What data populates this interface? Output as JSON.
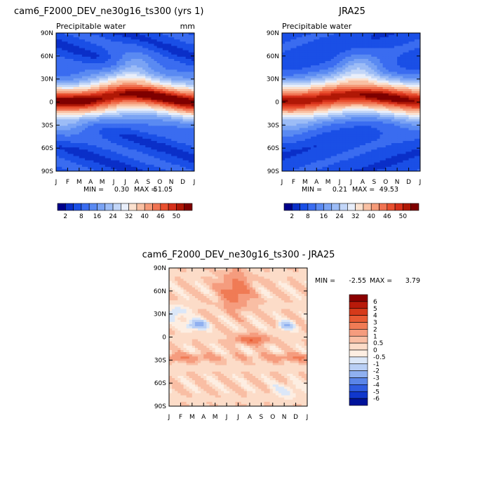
{
  "chart_data": [
    {
      "type": "heatmap",
      "title": "cam6_F2000_DEV_ne30g16_ts300 (yrs 1)",
      "subtitle": "Precipitable water",
      "units": "mm",
      "x_ticks": [
        "J",
        "F",
        "M",
        "A",
        "M",
        "J",
        "J",
        "A",
        "S",
        "O",
        "N",
        "D",
        "J"
      ],
      "y_ticks": [
        "90N",
        "60N",
        "30N",
        "0",
        "30S",
        "60S",
        "90S"
      ],
      "ylim": [
        -90,
        90
      ],
      "stats": {
        "min_label": "MIN =",
        "min": "0.30",
        "max_label": "MAX =",
        "max": "51.05"
      },
      "colorbar_labels": [
        "2",
        "8",
        "16",
        "24",
        "32",
        "40",
        "46",
        "50"
      ],
      "colorbar_colors": [
        "#00008a",
        "#0a2fc8",
        "#1a4fe6",
        "#3a6cf0",
        "#5a8af2",
        "#7aa3f4",
        "#9cbcf6",
        "#c2d6f8",
        "#e8eefa",
        "#fbe1cf",
        "#f9c0a3",
        "#f59a78",
        "#f07352",
        "#e9502f",
        "#d6301a",
        "#b01806",
        "#7f0000"
      ],
      "field_model": "A"
    },
    {
      "type": "heatmap",
      "title": "JRA25",
      "subtitle": "Precipitable water",
      "x_ticks": [
        "J",
        "F",
        "M",
        "A",
        "M",
        "J",
        "J",
        "A",
        "S",
        "O",
        "N",
        "D",
        "J"
      ],
      "y_ticks": [
        "90N",
        "60N",
        "30N",
        "0",
        "30S",
        "60S",
        "90S"
      ],
      "ylim": [
        -90,
        90
      ],
      "stats": {
        "min_label": "MIN =",
        "min": "0.21",
        "max_label": "MAX =",
        "max": "49.53"
      },
      "colorbar_labels": [
        "2",
        "8",
        "16",
        "24",
        "32",
        "40",
        "46",
        "50"
      ],
      "field_model": "B"
    },
    {
      "type": "heatmap",
      "title": "cam6_F2000_DEV_ne30g16_ts300 - JRA25",
      "x_ticks": [
        "J",
        "F",
        "M",
        "A",
        "M",
        "J",
        "J",
        "A",
        "S",
        "O",
        "N",
        "D",
        "J"
      ],
      "y_ticks": [
        "90N",
        "60N",
        "30N",
        "0",
        "30S",
        "60S",
        "90S"
      ],
      "ylim": [
        -90,
        90
      ],
      "stats": {
        "min_label": "MIN =",
        "min": "-2.55",
        "max_label": "MAX =",
        "max": "3.79"
      },
      "colorbar_labels": [
        "6",
        "5",
        "4",
        "3",
        "2",
        "1",
        "0.5",
        "0",
        "-0.5",
        "-1",
        "-2",
        "-3",
        "-4",
        "-5",
        "-6"
      ],
      "colorbar_colors": [
        "#8a0000",
        "#b81a0a",
        "#d63a1a",
        "#e85a33",
        "#f07b55",
        "#f59c7e",
        "#f9bea4",
        "#fcdcc8",
        "#fdeee2",
        "#dbe7f8",
        "#b9cff5",
        "#8fb0f0",
        "#5a85e8",
        "#2f5ce0",
        "#1037cc",
        "#00139a"
      ],
      "field_model": "D"
    }
  ]
}
